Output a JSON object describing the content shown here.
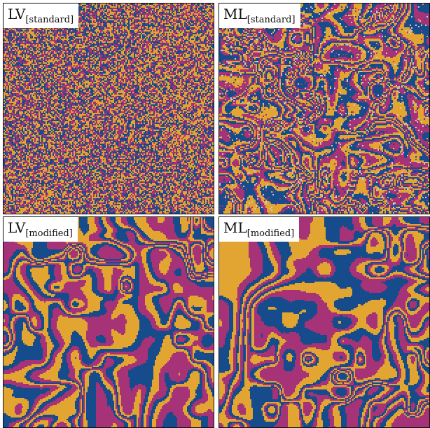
{
  "colors": {
    "yellow": "#e3a531",
    "magenta": "#a63277",
    "blue": "#164b8c",
    "speck": "#c9c9c9"
  },
  "panels": [
    {
      "id": "tl",
      "label_main": "LV",
      "label_sub": "[standard]",
      "pattern": "noise"
    },
    {
      "id": "tr",
      "label_main": "ML",
      "label_sub": "[standard]",
      "pattern": "fine-spiral"
    },
    {
      "id": "bl",
      "label_main": "LV",
      "label_sub": "[modified]",
      "pattern": "coarse-spiral"
    },
    {
      "id": "br",
      "label_main": "ML",
      "label_sub": "[modified]",
      "pattern": "coarse-spiral"
    }
  ]
}
